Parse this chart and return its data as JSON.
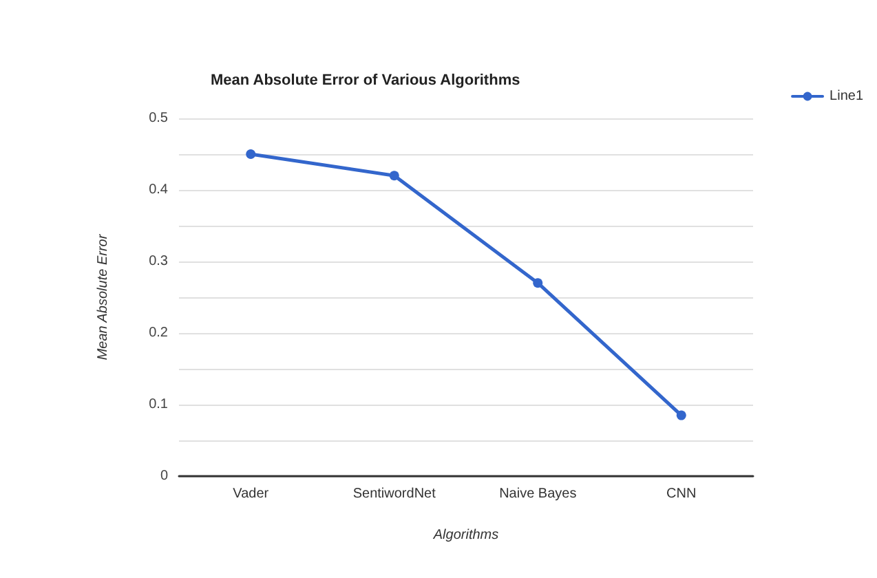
{
  "chart_data": {
    "type": "line",
    "title": "Mean Absolute Error of Various Algorithms",
    "xlabel": "Algorithms",
    "ylabel": "Mean Absolute Error",
    "categories": [
      "Vader",
      "SentiwordNet",
      "Naive Bayes",
      "CNN"
    ],
    "series": [
      {
        "name": "Line1",
        "color": "#3366cc",
        "values": [
          0.45,
          0.42,
          0.27,
          0.085
        ]
      }
    ],
    "ylim": [
      0,
      0.5
    ],
    "yticks": [
      0,
      {
        "value": 0.05,
        "label": null
      },
      0.1,
      {
        "value": 0.15,
        "label": null
      },
      0.2,
      {
        "value": 0.25,
        "label": null
      },
      0.3,
      {
        "value": 0.35,
        "label": null
      },
      0.4,
      {
        "value": 0.45,
        "label": null
      },
      0.5
    ],
    "grid": "y",
    "legend": "top right",
    "marker": "circle",
    "line_style": "solid"
  }
}
